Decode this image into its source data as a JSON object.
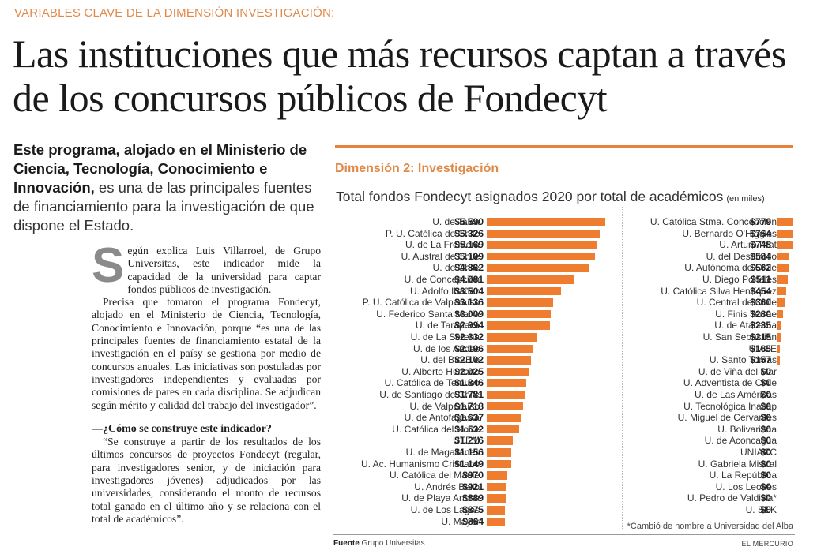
{
  "kicker": "VARIABLES CLAVE DE LA DIMENSIÓN INVESTIGACIÓN:",
  "headline": "Las instituciones que más recursos captan a través de los concursos públicos de Fondecyt",
  "lead": {
    "bold": "Este programa, alojado en el Ministerio de Ciencia, Tecnología, Conocimiento e Innovación,",
    "rest": " es una de las principales fuentes de financiamiento para la investigación de que dispone el Estado."
  },
  "body": {
    "dropcap": "S",
    "p1": "egún explica Luis Villarroel, de Grupo Universitas, este indicador mide la capacidad de la universidad para captar fondos públicos de investigación.",
    "p2": "Precisa que tomaron el programa Fondecyt, alojado en el Ministerio de Ciencia, Tecnología, Conocimiento e Innovación, porque “es una de las principales fuentes de financiamiento estatal de la investigación en el paísy se gestiona por medio de concursos anuales. Las iniciativas son postuladas por investigadores independientes y evaluadas por comisiones de pares en cada disciplina. Se adjudican según mérito y calidad del trabajo del investigador”.",
    "question": "—¿Cómo se construye este indicador?",
    "p3": "“Se construye a partir de los resultados de los últimos concursos de proyectos Fondecyt (regular, para investigadores senior, y de iniciación para investigadores jóvenes) adjudicados por las universidades, considerando el monto de recursos total ganado en el último año y se relaciona con el total de académicos”."
  },
  "chart_data": {
    "type": "bar",
    "orientation": "horizontal",
    "section": "Dimensión 2: Investigación",
    "title": "Total fondos Fondecyt asignados 2020 por total de académicos",
    "unit_note": "(en miles)",
    "xlabel": "",
    "ylabel": "",
    "xlim": [
      0,
      5590
    ],
    "grid": false,
    "bar_color": "#ee7d30",
    "categories": [
      "U. de Talca",
      "P. U. Católica de Chile",
      "U. de La Frontera",
      "U. Austral de Chile",
      "U. de Chile",
      "U. de Concepción",
      "U. Adolfo Ibáñez",
      "P. U. Católica de Valparaíso",
      "U. Federico Santa María",
      "U. de Tarapacá",
      "U. de La Serena",
      "U. de los Andes",
      "U. del Bío-Bío",
      "U. Alberto Hurtado",
      "U. Católica de Temuco",
      "U. de Santiago de Chile",
      "U. de Valparaíso",
      "U. de Antofagasta",
      "U. Católica del Norte",
      "UTEM",
      "U. de Magallanes",
      "U. Ac. Humanismo Cristiano",
      "U. Católica del Maule",
      "U. Andrés Bello",
      "U. de Playa Ancha",
      "U. de Los Lagos",
      "U. Mayor",
      "U. Católica Stma. Concepción",
      "U. Bernardo O'Higgins",
      "U. Arturo Prat",
      "U. del Desarrollo",
      "U. Autónoma de Chile",
      "U. Diego Portales",
      "U. Católica Silva Henríquez",
      "U. Central de Chile",
      "U. Finis Terrae",
      "U. de Atacama",
      "U. San Sebastián",
      "UMCE",
      "U. Santo Tomás",
      "U. de Viña del Mar",
      "U. Adventista de Chile",
      "U. de Las Américas",
      "U. Tecnológica Inacap",
      "U. Miguel de Cervantes",
      "U. Bolivariana",
      "U. de Aconcagua",
      "UNIACC",
      "U. Gabriela Mistral",
      "U. La República",
      "U. Los Leones",
      "U. Pedro de Valdivia*",
      "U. SEK"
    ],
    "values": [
      5590,
      5326,
      5169,
      5109,
      4862,
      4081,
      3504,
      3136,
      3009,
      2994,
      2332,
      2196,
      2102,
      2025,
      1846,
      1781,
      1718,
      1637,
      1532,
      1216,
      1156,
      1149,
      970,
      921,
      889,
      875,
      864,
      779,
      764,
      748,
      584,
      562,
      511,
      454,
      360,
      280,
      235,
      215,
      165,
      157,
      0,
      0,
      0,
      0,
      0,
      0,
      0,
      0,
      0,
      0,
      0,
      0,
      0
    ],
    "value_labels": [
      "$5.590",
      "$5.326",
      "$5.169",
      "$5.109",
      "$4.862",
      "$4.081",
      "$3.504",
      "$3.136",
      "$3.009",
      "$2.994",
      "$2.332",
      "$2.196",
      "$2.102",
      "$2.025",
      "$1.846",
      "$1.781",
      "$1.718",
      "$1.637",
      "$1.532",
      "$1.216",
      "$1.156",
      "$1.149",
      "$970",
      "$921",
      "$889",
      "$875",
      "$864",
      "$779",
      "$764",
      "$748",
      "$584",
      "$562",
      "$511",
      "$454",
      "$360",
      "$280",
      "$235",
      "$215",
      "$165",
      "$157",
      "$0",
      "$0",
      "$0",
      "$0",
      "$0",
      "$0",
      "$0",
      "$0",
      "$0",
      "$0",
      "$0",
      "$0",
      "$0"
    ],
    "column_split": 27,
    "footnote": "*Cambió de nombre a Universidad del Alba"
  },
  "footer": {
    "source_label": "Fuente",
    "source_text": " Grupo Universitas",
    "brand": "EL MERCURIO"
  }
}
